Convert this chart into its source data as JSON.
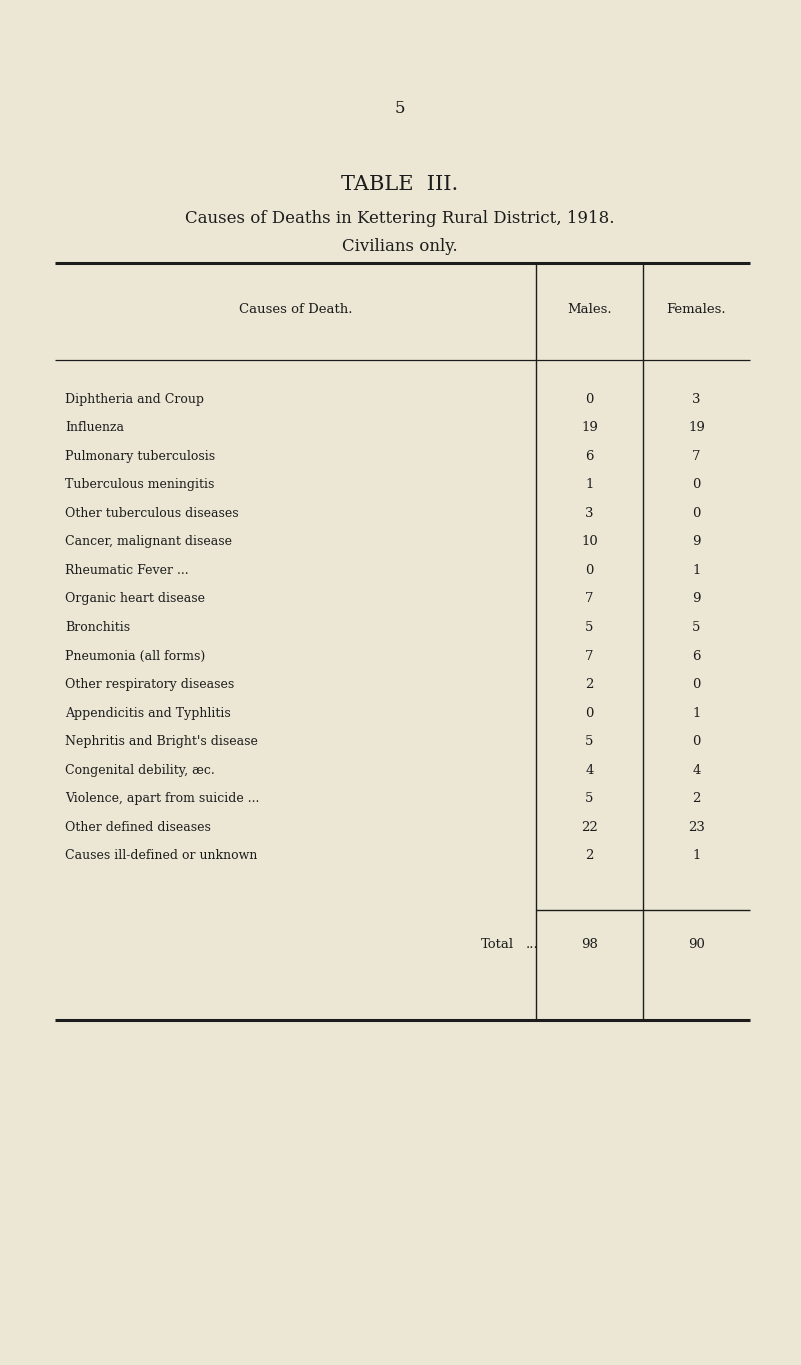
{
  "page_number": "5",
  "title1": "TABLE  III.",
  "title2": "Causes of Deaths in Kettering Rural District, 1918.",
  "title3": "Civilians only.",
  "col_header_cause": "Causes of Death.",
  "col_header_males": "Males.",
  "col_header_females": "Females.",
  "rows": [
    {
      "cause": "Diphtheria and Croup",
      "trailing": "...          ...          .",
      "males": "0",
      "females": "3"
    },
    {
      "cause": "Influenza",
      "trailing": "...          ...          .",
      "males": "19",
      "females": "19"
    },
    {
      "cause": "Pulmonary tuberculosis",
      "trailing": "...          ...          .",
      "males": "6",
      "females": "7"
    },
    {
      "cause": "Tuberculous meningitis",
      "trailing": "...          ...          .",
      "males": "1",
      "females": "0"
    },
    {
      "cause": "Other tuberculous diseases",
      "trailing": "...          ...          .",
      "males": "3",
      "females": "0"
    },
    {
      "cause": "Cancer, malignant disease",
      "trailing": "...         ..          .",
      "males": "10",
      "females": "9"
    },
    {
      "cause": "Rheumatic Fever ...",
      "trailing": "...          ...          ...",
      "males": "0",
      "females": "1"
    },
    {
      "cause": "Organic heart disease",
      "trailing": "..           ..           ..",
      "males": "7",
      "females": "9"
    },
    {
      "cause": "Bronchitis",
      "trailing": "...          ...          ...         ...",
      "males": "5",
      "females": "5"
    },
    {
      "cause": "Pneumonia (all forms)",
      "trailing": "...          ...         ...",
      "males": "7",
      "females": "6"
    },
    {
      "cause": "Other respiratory diseases",
      "trailing": "...          ...          ..",
      "males": "2",
      "females": "0"
    },
    {
      "cause": "Appendicitis and Typhlitis",
      "trailing": "..           ...          ...",
      "males": "0",
      "females": "1"
    },
    {
      "cause": "Nephritis and Bright's disease",
      "trailing": "...          ...          ...",
      "males": "5",
      "females": "0"
    },
    {
      "cause": "Congenital debility, æc.",
      "trailing": "...          ...          ...",
      "males": "4",
      "females": "4"
    },
    {
      "cause": "Violence, apart from suicide ...",
      "trailing": "...          ...          ...",
      "males": "5",
      "females": "2"
    },
    {
      "cause": "Other defined diseases",
      "trailing": "...          ...          ...",
      "males": "22",
      "females": "23"
    },
    {
      "cause": "Causes ill-defined or unknown",
      "trailing": "...          ...          ...",
      "males": "2",
      "females": "1"
    }
  ],
  "total_label": "Total",
  "total_dots": "...",
  "total_males": "98",
  "total_females": "90",
  "bg_color": "#ece7d4",
  "text_color": "#1c1c1c",
  "line_color": "#1c1c1c"
}
